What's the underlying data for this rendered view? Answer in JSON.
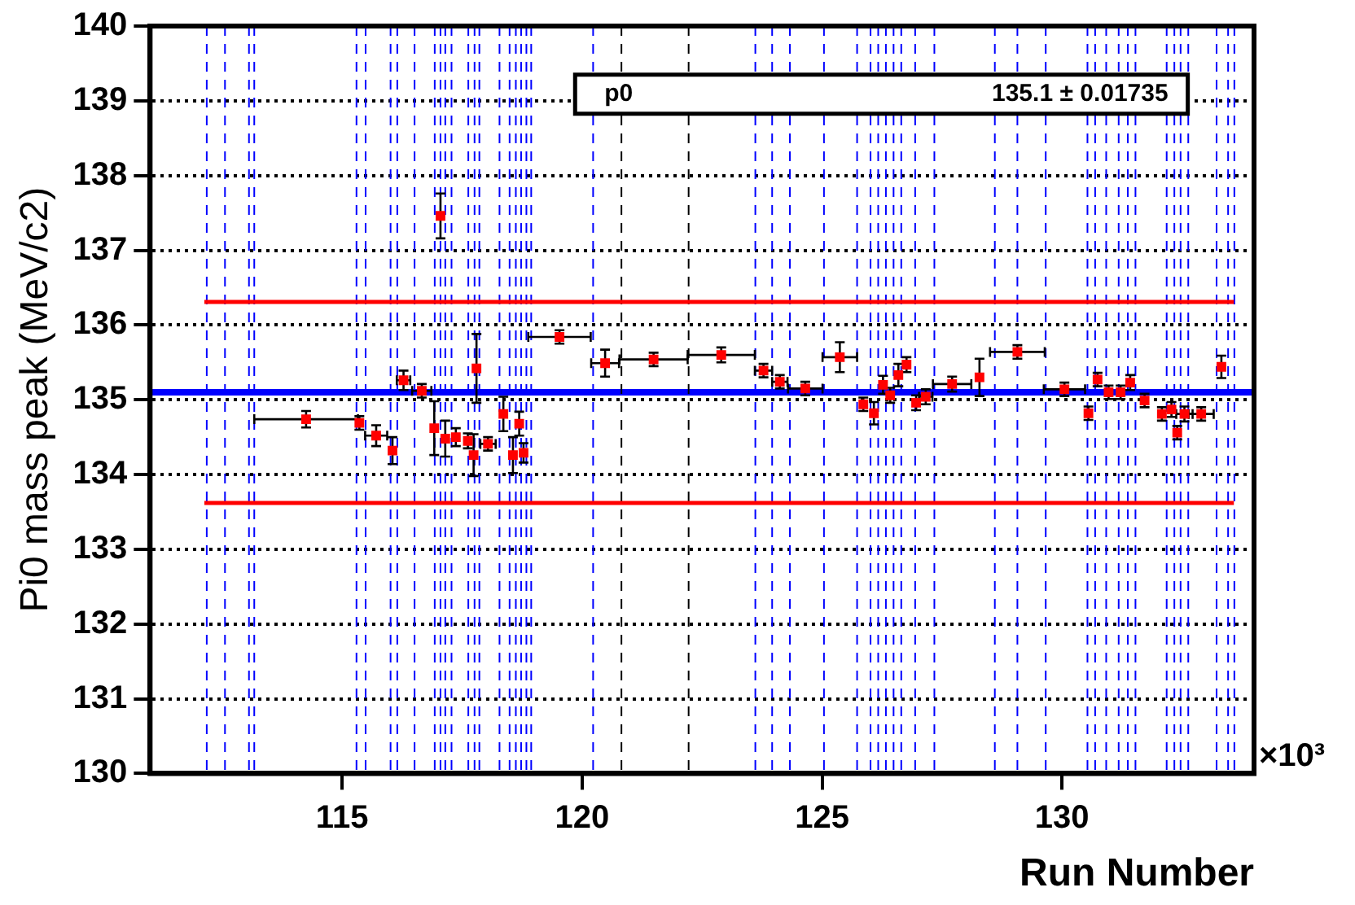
{
  "chart_data": {
    "type": "scatter",
    "xlabel": "Run Number",
    "ylabel": "Pi0 mass peak (MeV/c2)",
    "xlim": [
      111,
      134
    ],
    "xticks": [
      115,
      120,
      125,
      130
    ],
    "ylim": [
      130,
      140
    ],
    "yticks": [
      130,
      131,
      132,
      133,
      134,
      135,
      136,
      137,
      138,
      139,
      140
    ],
    "grid": "y",
    "legend": false,
    "annotations": [
      "p0",
      "135.1 ± 0.01735",
      "×10³"
    ],
    "series": [
      {
        "marker": "square",
        "color": "#ff0000",
        "x": [
          114.25,
          115.36,
          115.71,
          116.05,
          116.28,
          116.66,
          116.92,
          117.05,
          117.15,
          117.37,
          117.62,
          117.74,
          117.8,
          118.04,
          118.36,
          118.56,
          118.69,
          118.78,
          119.53,
          120.48,
          121.49,
          122.9,
          123.78,
          124.12,
          124.65,
          125.37,
          125.86,
          126.08,
          126.27,
          126.42,
          126.59,
          126.76,
          126.96,
          127.16,
          127.71,
          128.28,
          129.07,
          130.05,
          130.55,
          130.74,
          130.97,
          131.22,
          131.42,
          131.72,
          132.08,
          132.28,
          132.4,
          132.55,
          132.9,
          133.32
        ],
        "values": [
          134.74,
          134.69,
          134.52,
          134.32,
          135.26,
          135.12,
          134.62,
          137.46,
          134.48,
          134.5,
          134.45,
          134.26,
          135.42,
          134.41,
          134.81,
          134.26,
          134.68,
          134.29,
          135.84,
          135.49,
          135.54,
          135.6,
          135.39,
          135.24,
          135.15,
          135.57,
          134.94,
          134.82,
          135.2,
          135.06,
          135.33,
          135.47,
          134.96,
          135.04,
          135.21,
          135.3,
          135.64,
          135.14,
          134.82,
          135.27,
          135.1,
          135.1,
          135.23,
          134.99,
          134.81,
          134.87,
          134.56,
          134.81,
          134.81,
          135.44
        ],
        "errors": [
          0.11,
          0.09,
          0.14,
          0.18,
          0.13,
          0.09,
          0.36,
          0.3,
          0.24,
          0.12,
          0.1,
          0.28,
          0.46,
          0.09,
          0.23,
          0.24,
          0.16,
          0.13,
          0.09,
          0.18,
          0.09,
          0.1,
          0.09,
          0.09,
          0.09,
          0.2,
          0.09,
          0.15,
          0.12,
          0.1,
          0.15,
          0.1,
          0.1,
          0.1,
          0.1,
          0.25,
          0.09,
          0.09,
          0.09,
          0.09,
          0.09,
          0.09,
          0.1,
          0.09,
          0.09,
          0.1,
          0.09,
          0.1,
          0.09,
          0.15
        ],
        "xerrors": [
          1.08,
          null,
          0.23,
          null,
          0.14,
          0.2,
          null,
          null,
          null,
          null,
          null,
          null,
          null,
          0.16,
          null,
          null,
          null,
          null,
          0.65,
          0.29,
          0.71,
          0.7,
          0.18,
          0.16,
          0.36,
          0.36,
          null,
          null,
          null,
          null,
          null,
          null,
          null,
          0.14,
          0.4,
          null,
          0.57,
          0.43,
          null,
          null,
          null,
          null,
          null,
          null,
          null,
          null,
          null,
          0.17,
          0.26,
          null
        ]
      },
      {
        "type": "line",
        "marker": "none",
        "color": "#ff0000",
        "x": [
          112.13,
          133.58
        ],
        "values": [
          136.31,
          136.31
        ]
      },
      {
        "type": "line",
        "marker": "none",
        "color": "#ff0000",
        "x": [
          112.13,
          133.58
        ],
        "values": [
          133.62,
          133.62
        ]
      }
    ],
    "ref_lines": [
      {
        "axis": "y",
        "value": 135.1,
        "color": "#0000ff",
        "line_style": "solid"
      },
      {
        "axis": "x",
        "value": 112.18,
        "color": "#0000ff",
        "line_style": "dashed"
      },
      {
        "axis": "x",
        "value": 112.56,
        "color": "#0000ff",
        "line_style": "dashed"
      },
      {
        "axis": "x",
        "value": 113.06,
        "color": "#0000ff",
        "line_style": "dashed"
      },
      {
        "axis": "x",
        "value": 113.17,
        "color": "#0000ff",
        "line_style": "dashed"
      },
      {
        "axis": "x",
        "value": 115.3,
        "color": "#0000ff",
        "line_style": "dashed"
      },
      {
        "axis": "x",
        "value": 115.49,
        "color": "#0000ff",
        "line_style": "dashed"
      },
      {
        "axis": "x",
        "value": 116.01,
        "color": "#0000ff",
        "line_style": "dashed"
      },
      {
        "axis": "x",
        "value": 116.15,
        "color": "#0000ff",
        "line_style": "dashed"
      },
      {
        "axis": "x",
        "value": 116.51,
        "color": "#0000ff",
        "line_style": "dashed"
      },
      {
        "axis": "x",
        "value": 116.93,
        "color": "#0000ff",
        "line_style": "dashed"
      },
      {
        "axis": "x",
        "value": 117.05,
        "color": "#0000ff",
        "line_style": "dashed"
      },
      {
        "axis": "x",
        "value": 117.15,
        "color": "#0000ff",
        "line_style": "dashed"
      },
      {
        "axis": "x",
        "value": 117.28,
        "color": "#0000ff",
        "line_style": "dashed"
      },
      {
        "axis": "x",
        "value": 117.63,
        "color": "#0000ff",
        "line_style": "dashed"
      },
      {
        "axis": "x",
        "value": 117.76,
        "color": "#0000ff",
        "line_style": "dashed"
      },
      {
        "axis": "x",
        "value": 117.86,
        "color": "#0000ff",
        "line_style": "dashed"
      },
      {
        "axis": "x",
        "value": 118.28,
        "color": "#0000ff",
        "line_style": "dashed"
      },
      {
        "axis": "x",
        "value": 118.49,
        "color": "#0000ff",
        "line_style": "dashed"
      },
      {
        "axis": "x",
        "value": 118.62,
        "color": "#0000ff",
        "line_style": "dashed"
      },
      {
        "axis": "x",
        "value": 118.73,
        "color": "#0000ff",
        "line_style": "dashed"
      },
      {
        "axis": "x",
        "value": 118.84,
        "color": "#0000ff",
        "line_style": "dashed"
      },
      {
        "axis": "x",
        "value": 118.94,
        "color": "#0000ff",
        "line_style": "dashed"
      },
      {
        "axis": "x",
        "value": 120.23,
        "color": "#0000ff",
        "line_style": "dashed"
      },
      {
        "axis": "x",
        "value": 120.82,
        "color": "#000000",
        "line_style": "dashed"
      },
      {
        "axis": "x",
        "value": 122.22,
        "color": "#000000",
        "line_style": "dashed"
      },
      {
        "axis": "x",
        "value": 123.61,
        "color": "#0000ff",
        "line_style": "dashed"
      },
      {
        "axis": "x",
        "value": 123.96,
        "color": "#0000ff",
        "line_style": "dashed"
      },
      {
        "axis": "x",
        "value": 124.33,
        "color": "#0000ff",
        "line_style": "dashed"
      },
      {
        "axis": "x",
        "value": 125.04,
        "color": "#0000ff",
        "line_style": "dashed"
      },
      {
        "axis": "x",
        "value": 125.73,
        "color": "#0000ff",
        "line_style": "dashed"
      },
      {
        "axis": "x",
        "value": 126.01,
        "color": "#0000ff",
        "line_style": "dashed"
      },
      {
        "axis": "x",
        "value": 126.17,
        "color": "#0000ff",
        "line_style": "dashed"
      },
      {
        "axis": "x",
        "value": 126.33,
        "color": "#0000ff",
        "line_style": "dashed"
      },
      {
        "axis": "x",
        "value": 126.49,
        "color": "#0000ff",
        "line_style": "dashed"
      },
      {
        "axis": "x",
        "value": 126.65,
        "color": "#0000ff",
        "line_style": "dashed"
      },
      {
        "axis": "x",
        "value": 126.94,
        "color": "#0000ff",
        "line_style": "dashed"
      },
      {
        "axis": "x",
        "value": 127.34,
        "color": "#0000ff",
        "line_style": "dashed"
      },
      {
        "axis": "x",
        "value": 128.6,
        "color": "#0000ff",
        "line_style": "dashed"
      },
      {
        "axis": "x",
        "value": 129.07,
        "color": "#0000ff",
        "line_style": "dashed"
      },
      {
        "axis": "x",
        "value": 129.66,
        "color": "#0000ff",
        "line_style": "dashed"
      },
      {
        "axis": "x",
        "value": 130.53,
        "color": "#0000ff",
        "line_style": "dashed"
      },
      {
        "axis": "x",
        "value": 130.69,
        "color": "#0000ff",
        "line_style": "dashed"
      },
      {
        "axis": "x",
        "value": 130.92,
        "color": "#0000ff",
        "line_style": "dashed"
      },
      {
        "axis": "x",
        "value": 131.18,
        "color": "#0000ff",
        "line_style": "dashed"
      },
      {
        "axis": "x",
        "value": 131.37,
        "color": "#0000ff",
        "line_style": "dashed"
      },
      {
        "axis": "x",
        "value": 131.53,
        "color": "#0000ff",
        "line_style": "dashed"
      },
      {
        "axis": "x",
        "value": 132.18,
        "color": "#0000ff",
        "line_style": "dashed"
      },
      {
        "axis": "x",
        "value": 132.34,
        "color": "#0000ff",
        "line_style": "dashed"
      },
      {
        "axis": "x",
        "value": 132.47,
        "color": "#0000ff",
        "line_style": "dashed"
      },
      {
        "axis": "x",
        "value": 132.63,
        "color": "#0000ff",
        "line_style": "dashed"
      },
      {
        "axis": "x",
        "value": 133.22,
        "color": "#0000ff",
        "line_style": "dashed"
      },
      {
        "axis": "x",
        "value": 133.46,
        "color": "#0000ff",
        "line_style": "dashed"
      },
      {
        "axis": "x",
        "value": 133.59,
        "color": "#0000ff",
        "line_style": "dashed"
      }
    ]
  }
}
